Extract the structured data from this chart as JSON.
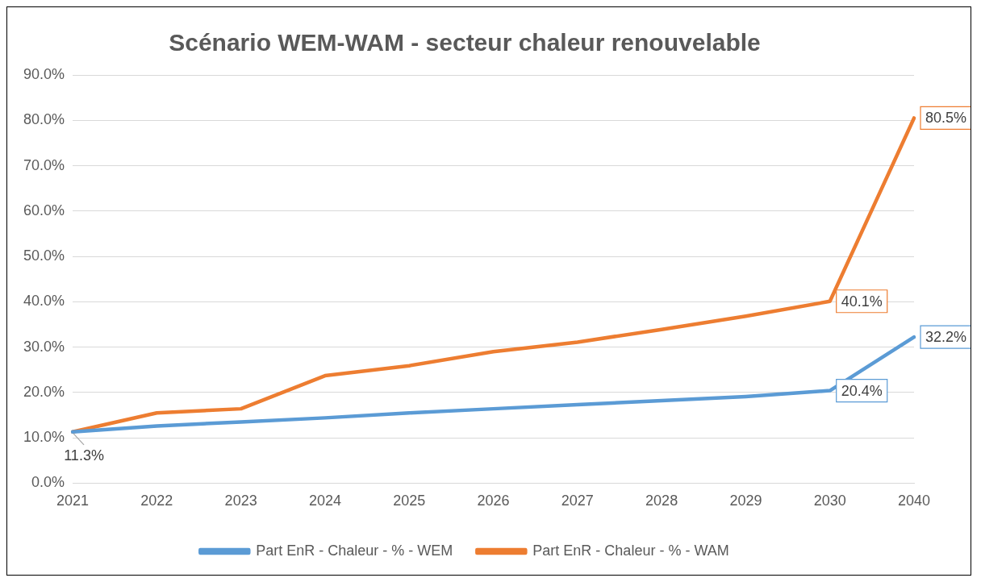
{
  "chart_data": {
    "type": "line",
    "title": "Scénario WEM-WAM - secteur chaleur renouvelable",
    "categories": [
      "2021",
      "2022",
      "2023",
      "2024",
      "2025",
      "2026",
      "2027",
      "2028",
      "2029",
      "2030",
      "2040"
    ],
    "series": [
      {
        "name": "Part EnR - Chaleur - % - WEM",
        "color": "#5b9bd5",
        "values": [
          11.3,
          12.6,
          13.5,
          14.4,
          15.5,
          16.4,
          17.3,
          18.2,
          19.1,
          20.4,
          32.2
        ],
        "value_labels": [
          null,
          null,
          null,
          null,
          null,
          null,
          null,
          null,
          null,
          "20.4%",
          "32.2%"
        ]
      },
      {
        "name": "Part EnR - Chaleur - % - WAM",
        "color": "#ed7d31",
        "values": [
          11.3,
          15.5,
          16.4,
          23.7,
          25.9,
          29.0,
          31.1,
          33.9,
          36.8,
          40.1,
          80.5
        ],
        "value_labels": [
          null,
          null,
          null,
          null,
          null,
          null,
          null,
          null,
          null,
          "40.1%",
          "80.5%"
        ]
      }
    ],
    "annotations": [
      {
        "text": "11.3%",
        "x": "2021",
        "y": 11.3
      }
    ],
    "ylim": [
      0,
      90
    ],
    "yticks": [
      {
        "value": 0,
        "label": "0.0%"
      },
      {
        "value": 10,
        "label": "10.0%"
      },
      {
        "value": 20,
        "label": "20.0%"
      },
      {
        "value": 30,
        "label": "30.0%"
      },
      {
        "value": 40,
        "label": "40.0%"
      },
      {
        "value": 50,
        "label": "50.0%"
      },
      {
        "value": 60,
        "label": "60.0%"
      },
      {
        "value": 70,
        "label": "70.0%"
      },
      {
        "value": 80,
        "label": "80.0%"
      },
      {
        "value": 90,
        "label": "90.0%"
      }
    ],
    "grid": "y",
    "legend": "bottom",
    "marker": "none",
    "line_style": "solid"
  }
}
